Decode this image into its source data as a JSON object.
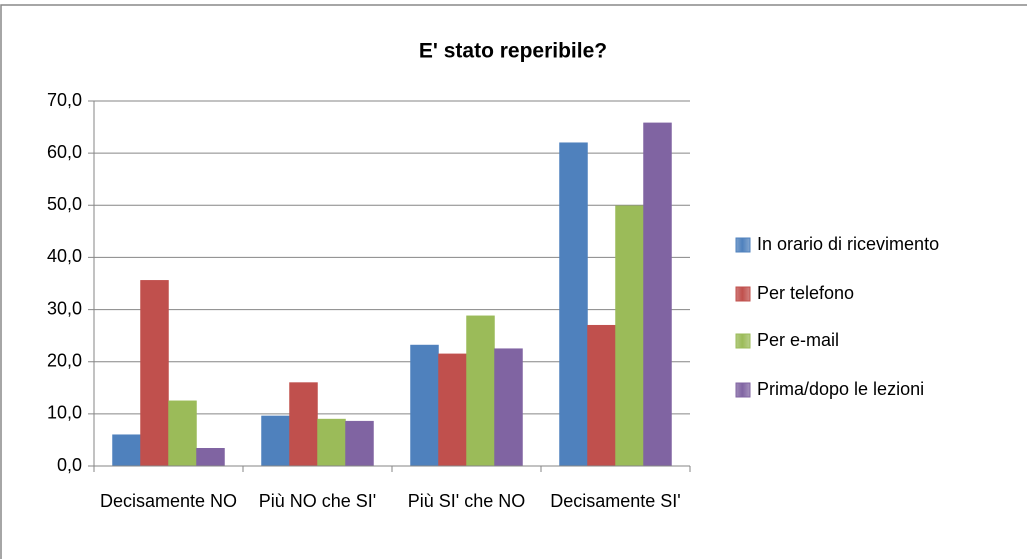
{
  "chart_data": {
    "type": "bar",
    "title": "E' stato reperibile?",
    "categories": [
      "Decisamente NO",
      "Più NO che SI'",
      "Più SI' che NO",
      "Decisamente SI'"
    ],
    "series": [
      {
        "name": "In orario di ricevimento",
        "color": "#4f81bd",
        "values": [
          6.0,
          9.6,
          23.2,
          62.0
        ]
      },
      {
        "name": "Per telefono",
        "color": "#c0504d",
        "values": [
          35.6,
          16.0,
          21.5,
          27.0
        ]
      },
      {
        "name": "Per e-mail",
        "color": "#9bbb59",
        "values": [
          12.5,
          9.0,
          28.8,
          49.9
        ]
      },
      {
        "name": "Prima/dopo le lezioni",
        "color": "#8064a2",
        "values": [
          3.4,
          8.6,
          22.5,
          65.8
        ]
      }
    ],
    "ylim": [
      0,
      70
    ],
    "yticks": [
      {
        "value": 0,
        "label": "0,0"
      },
      {
        "value": 10,
        "label": "10,0"
      },
      {
        "value": 20,
        "label": "20,0"
      },
      {
        "value": 30,
        "label": "30,0"
      },
      {
        "value": 40,
        "label": "40,0"
      },
      {
        "value": 50,
        "label": "50,0"
      },
      {
        "value": 60,
        "label": "60,0"
      },
      {
        "value": 70,
        "label": "70,0"
      }
    ],
    "grid": true,
    "legend": "right"
  }
}
